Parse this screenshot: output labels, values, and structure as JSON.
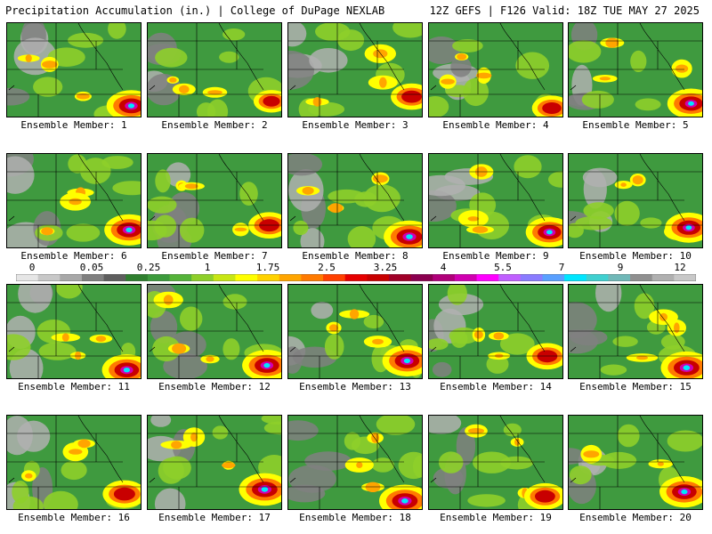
{
  "header": {
    "left_title": "Precipitation Accumulation (in.) | College of DuPage NEXLAB",
    "right_title": "12Z GEFS | F126 Valid: 18Z TUE MAY 27 2025"
  },
  "colorbar": {
    "tick_labels": [
      "0",
      "0.05",
      "0.25",
      "1",
      "1.75",
      "2.5",
      "3.25",
      "4",
      "5.5",
      "7",
      "9",
      "12"
    ],
    "colors": [
      "#e6e6e6",
      "#c8c8c8",
      "#a8a8a8",
      "#808080",
      "#5e5e5e",
      "#2f7f2f",
      "#3c9a3c",
      "#55b33a",
      "#8ecf2a",
      "#c8e614",
      "#ffff00",
      "#ffd200",
      "#ffa500",
      "#ff7a00",
      "#ff4000",
      "#e60000",
      "#c80000",
      "#a00028",
      "#8b0050",
      "#b0007a",
      "#d000b0",
      "#ff00ff",
      "#c060ff",
      "#8a7cff",
      "#5aa0ff",
      "#00e6ff",
      "#40d0d0",
      "#70b8b8",
      "#909090",
      "#b0b0b0",
      "#c8c8c8"
    ]
  },
  "members": [
    {
      "label": "Ensemble Member: 1",
      "intensity": 0.9
    },
    {
      "label": "Ensemble Member: 2",
      "intensity": 0.55
    },
    {
      "label": "Ensemble Member: 3",
      "intensity": 0.7
    },
    {
      "label": "Ensemble Member: 4",
      "intensity": 0.65
    },
    {
      "label": "Ensemble Member: 5",
      "intensity": 0.85
    },
    {
      "label": "Ensemble Member: 6",
      "intensity": 0.9
    },
    {
      "label": "Ensemble Member: 7",
      "intensity": 0.7
    },
    {
      "label": "Ensemble Member: 8",
      "intensity": 0.95
    },
    {
      "label": "Ensemble Member: 9",
      "intensity": 0.85
    },
    {
      "label": "Ensemble Member: 10",
      "intensity": 0.85
    },
    {
      "label": "Ensemble Member: 11",
      "intensity": 0.9
    },
    {
      "label": "Ensemble Member: 12",
      "intensity": 0.9
    },
    {
      "label": "Ensemble Member: 13",
      "intensity": 0.9
    },
    {
      "label": "Ensemble Member: 14",
      "intensity": 0.7
    },
    {
      "label": "Ensemble Member: 15",
      "intensity": 0.95
    },
    {
      "label": "Ensemble Member: 16",
      "intensity": 0.75
    },
    {
      "label": "Ensemble Member: 17",
      "intensity": 0.95
    },
    {
      "label": "Ensemble Member: 18",
      "intensity": 0.95
    },
    {
      "label": "Ensemble Member: 19",
      "intensity": 0.7
    },
    {
      "label": "Ensemble Member: 20",
      "intensity": 0.9
    }
  ]
}
